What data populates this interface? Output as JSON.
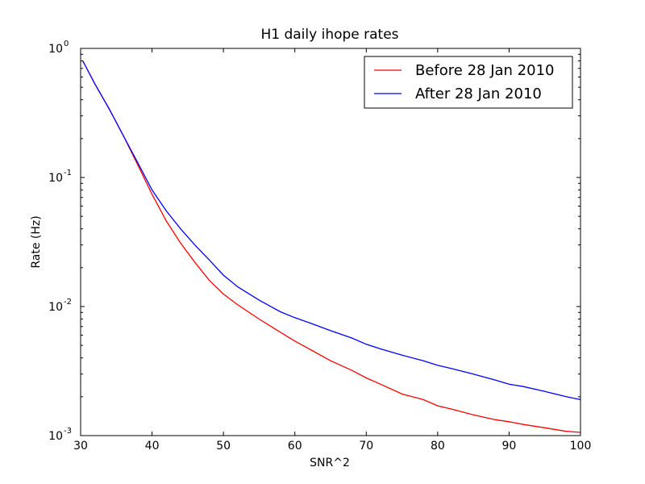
{
  "chart_data": {
    "type": "line",
    "title": "H1 daily ihope rates",
    "xlabel": "SNR^2",
    "ylabel": "Rate (Hz)",
    "xscale": "linear",
    "yscale": "log",
    "xlim": [
      30,
      100
    ],
    "ylim": [
      0.001,
      1
    ],
    "xticks": [
      30,
      40,
      50,
      60,
      70,
      80,
      90,
      100
    ],
    "xtick_labels": [
      "30",
      "40",
      "50",
      "60",
      "70",
      "80",
      "90",
      "100"
    ],
    "yticks": [
      {
        "value": 0.001,
        "base": "10",
        "exp": "-3"
      },
      {
        "value": 0.01,
        "base": "10",
        "exp": "-2"
      },
      {
        "value": 0.1,
        "base": "10",
        "exp": "-1"
      },
      {
        "value": 1,
        "base": "10",
        "exp": "0"
      }
    ],
    "grid": false,
    "legend_position": "top-right",
    "series": [
      {
        "name": "Before 28 Jan 2010",
        "color": "#ff0000",
        "x": [
          30.3,
          32,
          34,
          36,
          38,
          40,
          42,
          44,
          46,
          48,
          50,
          52,
          55,
          58,
          60,
          62,
          65,
          68,
          70,
          72,
          75,
          78,
          80,
          82,
          85,
          88,
          90,
          92,
          95,
          98,
          100
        ],
        "y": [
          0.8,
          0.53,
          0.34,
          0.21,
          0.125,
          0.074,
          0.046,
          0.031,
          0.022,
          0.016,
          0.0125,
          0.0103,
          0.008,
          0.0063,
          0.0054,
          0.0047,
          0.0038,
          0.0032,
          0.0028,
          0.0025,
          0.0021,
          0.0019,
          0.0017,
          0.0016,
          0.00145,
          0.00133,
          0.00128,
          0.00122,
          0.00115,
          0.00108,
          0.00106
        ]
      },
      {
        "name": "After 28 Jan 2010",
        "color": "#0000ff",
        "x": [
          30.3,
          32,
          34,
          36,
          38,
          40,
          42,
          44,
          46,
          48,
          50,
          52,
          55,
          58,
          60,
          62,
          65,
          68,
          70,
          72,
          75,
          78,
          80,
          82,
          85,
          88,
          90,
          92,
          95,
          98,
          100
        ],
        "y": [
          0.8,
          0.53,
          0.34,
          0.21,
          0.13,
          0.08,
          0.055,
          0.04,
          0.03,
          0.023,
          0.0175,
          0.0142,
          0.0112,
          0.0091,
          0.0082,
          0.0075,
          0.0065,
          0.0057,
          0.0051,
          0.0047,
          0.0042,
          0.0038,
          0.0035,
          0.0033,
          0.003,
          0.0027,
          0.0025,
          0.0024,
          0.0022,
          0.002,
          0.0019
        ]
      }
    ]
  }
}
